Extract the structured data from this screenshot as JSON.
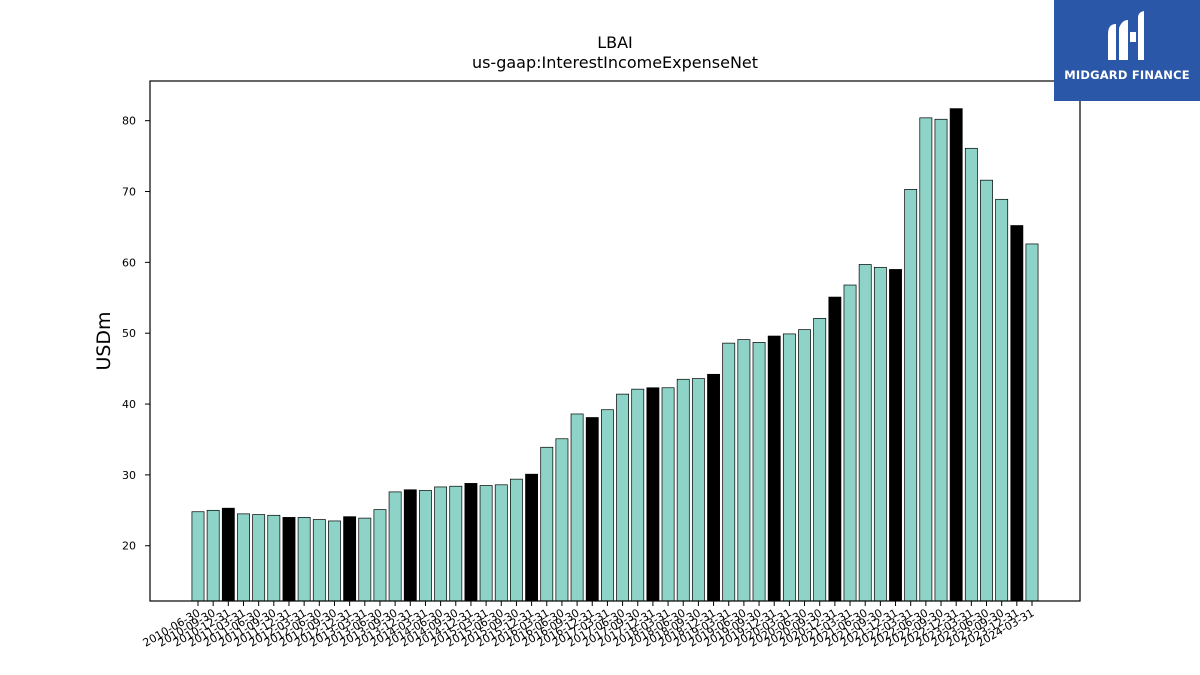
{
  "logo": {
    "text": "MIDGARD FINANCE",
    "icon": "midgard-m-logo-icon",
    "background": "#2b57a8"
  },
  "chart_data": {
    "type": "bar",
    "title": "LBAI",
    "subtitle": "us-gaap:InterestIncomeExpenseNet",
    "xlabel": "",
    "ylabel": "USDm",
    "ylim": [
      12.2,
      85.6
    ],
    "yticks": [
      20,
      30,
      40,
      50,
      60,
      70,
      80
    ],
    "grid": false,
    "colors": {
      "regular": "#8ed3c7",
      "highlight": "#000000",
      "edge": "#000000"
    },
    "categories": [
      "2010-06-30",
      "2010-09-30",
      "2010-12-31",
      "2011-03-31",
      "2011-06-30",
      "2011-09-30",
      "2011-12-31",
      "2012-03-31",
      "2012-06-30",
      "2012-09-30",
      "2012-12-31",
      "2013-03-31",
      "2013-06-30",
      "2013-09-30",
      "2013-12-31",
      "2014-03-31",
      "2014-06-30",
      "2014-09-30",
      "2014-12-31",
      "2015-03-31",
      "2015-06-30",
      "2015-09-30",
      "2015-12-31",
      "2016-03-31",
      "2016-06-30",
      "2016-09-30",
      "2016-12-31",
      "2017-03-31",
      "2017-06-30",
      "2017-09-30",
      "2017-12-31",
      "2018-03-31",
      "2018-06-30",
      "2018-09-30",
      "2018-12-31",
      "2019-03-31",
      "2019-06-30",
      "2019-09-30",
      "2019-12-31",
      "2020-03-31",
      "2020-06-30",
      "2020-09-30",
      "2020-12-31",
      "2021-03-31",
      "2021-06-30",
      "2021-09-30",
      "2021-12-31",
      "2022-03-31",
      "2022-06-30",
      "2022-09-30",
      "2022-12-31",
      "2023-03-31",
      "2023-06-30",
      "2023-09-30",
      "2023-12-31",
      "2024-03-31"
    ],
    "values": [
      24.8,
      25.0,
      25.3,
      24.5,
      24.4,
      24.3,
      24.0,
      24.0,
      23.7,
      23.5,
      24.1,
      23.9,
      25.1,
      27.6,
      27.9,
      27.8,
      28.3,
      28.4,
      28.8,
      28.5,
      28.6,
      29.4,
      30.1,
      33.9,
      35.1,
      38.6,
      38.1,
      39.2,
      41.4,
      42.1,
      42.3,
      42.3,
      43.5,
      43.6,
      44.2,
      48.6,
      49.1,
      48.7,
      49.6,
      49.9,
      50.5,
      52.1,
      55.1,
      56.8,
      59.7,
      59.3,
      59.0,
      70.3,
      80.4,
      80.2,
      81.7,
      76.1,
      71.6,
      68.9,
      65.2,
      62.6
    ],
    "highlighted": [
      false,
      false,
      true,
      false,
      false,
      false,
      true,
      false,
      false,
      false,
      true,
      false,
      false,
      false,
      true,
      false,
      false,
      false,
      true,
      false,
      false,
      false,
      true,
      false,
      false,
      false,
      true,
      false,
      false,
      false,
      true,
      false,
      false,
      false,
      true,
      false,
      false,
      false,
      true,
      false,
      false,
      false,
      true,
      false,
      false,
      false,
      true,
      false,
      false,
      false,
      true,
      false,
      false,
      false,
      true,
      false
    ]
  }
}
